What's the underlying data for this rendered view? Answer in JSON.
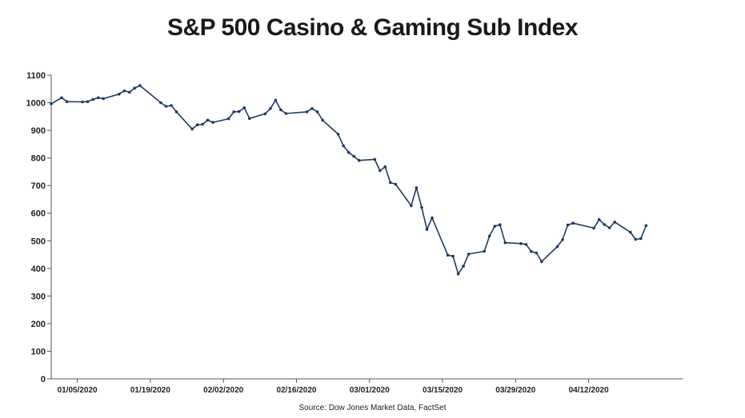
{
  "chart_data": {
    "type": "line",
    "title": "S&P 500 Casino & Gaming Sub Index",
    "source": "Source: Dow Jones Market Data, FactSet",
    "xlabel": "",
    "ylabel": "",
    "ylim": [
      0,
      1100
    ],
    "yticks": [
      0,
      100,
      200,
      300,
      400,
      500,
      600,
      700,
      800,
      900,
      1000,
      1100
    ],
    "xtick_labels": [
      "01/05/2020",
      "01/19/2020",
      "02/02/2020",
      "02/16/2020",
      "03/01/2020",
      "03/15/2020",
      "03/29/2020",
      "04/12/2020"
    ],
    "xtick_dates": [
      "2020-01-05",
      "2020-01-19",
      "2020-02-02",
      "2020-02-16",
      "2020-03-01",
      "2020-03-15",
      "2020-03-29",
      "2020-04-12"
    ],
    "xlim": [
      "2019-12-31",
      "2020-04-30"
    ],
    "grid": false,
    "line_color": "#1f3b63",
    "series": [
      {
        "points": [
          [
            "2019-12-31",
            996
          ],
          [
            "2020-01-02",
            1018
          ],
          [
            "2020-01-03",
            1004
          ],
          [
            "2020-01-06",
            1003
          ],
          [
            "2020-01-07",
            1004
          ],
          [
            "2020-01-08",
            1012
          ],
          [
            "2020-01-09",
            1018
          ],
          [
            "2020-01-10",
            1015
          ],
          [
            "2020-01-13",
            1031
          ],
          [
            "2020-01-14",
            1043
          ],
          [
            "2020-01-15",
            1038
          ],
          [
            "2020-01-16",
            1053
          ],
          [
            "2020-01-17",
            1062
          ],
          [
            "2020-01-21",
            1000
          ],
          [
            "2020-01-22",
            987
          ],
          [
            "2020-01-23",
            990
          ],
          [
            "2020-01-24",
            967
          ],
          [
            "2020-01-27",
            905
          ],
          [
            "2020-01-28",
            920
          ],
          [
            "2020-01-29",
            922
          ],
          [
            "2020-01-30",
            937
          ],
          [
            "2020-01-31",
            929
          ],
          [
            "2020-02-03",
            942
          ],
          [
            "2020-02-04",
            967
          ],
          [
            "2020-02-05",
            968
          ],
          [
            "2020-02-06",
            982
          ],
          [
            "2020-02-07",
            943
          ],
          [
            "2020-02-10",
            960
          ],
          [
            "2020-02-11",
            979
          ],
          [
            "2020-02-12",
            1009
          ],
          [
            "2020-02-13",
            974
          ],
          [
            "2020-02-14",
            961
          ],
          [
            "2020-02-18",
            967
          ],
          [
            "2020-02-19",
            979
          ],
          [
            "2020-02-20",
            967
          ],
          [
            "2020-02-21",
            937
          ],
          [
            "2020-02-24",
            886
          ],
          [
            "2020-02-25",
            844
          ],
          [
            "2020-02-26",
            820
          ],
          [
            "2020-02-27",
            806
          ],
          [
            "2020-02-28",
            791
          ],
          [
            "2020-03-02",
            795
          ],
          [
            "2020-03-03",
            754
          ],
          [
            "2020-03-04",
            768
          ],
          [
            "2020-03-05",
            711
          ],
          [
            "2020-03-06",
            705
          ],
          [
            "2020-03-09",
            627
          ],
          [
            "2020-03-10",
            692
          ],
          [
            "2020-03-11",
            621
          ],
          [
            "2020-03-12",
            541
          ],
          [
            "2020-03-13",
            583
          ],
          [
            "2020-03-16",
            448
          ],
          [
            "2020-03-17",
            444
          ],
          [
            "2020-03-18",
            380
          ],
          [
            "2020-03-19",
            408
          ],
          [
            "2020-03-20",
            452
          ],
          [
            "2020-03-23",
            462
          ],
          [
            "2020-03-24",
            517
          ],
          [
            "2020-03-25",
            553
          ],
          [
            "2020-03-26",
            558
          ],
          [
            "2020-03-27",
            493
          ],
          [
            "2020-03-30",
            490
          ],
          [
            "2020-03-31",
            487
          ],
          [
            "2020-04-01",
            461
          ],
          [
            "2020-04-02",
            456
          ],
          [
            "2020-04-03",
            425
          ],
          [
            "2020-04-06",
            479
          ],
          [
            "2020-04-07",
            504
          ],
          [
            "2020-04-08",
            557
          ],
          [
            "2020-04-09",
            564
          ],
          [
            "2020-04-13",
            546
          ],
          [
            "2020-04-14",
            577
          ],
          [
            "2020-04-15",
            559
          ],
          [
            "2020-04-16",
            547
          ],
          [
            "2020-04-17",
            568
          ],
          [
            "2020-04-20",
            531
          ],
          [
            "2020-04-21",
            505
          ],
          [
            "2020-04-22",
            508
          ],
          [
            "2020-04-23",
            555
          ]
        ]
      }
    ]
  }
}
